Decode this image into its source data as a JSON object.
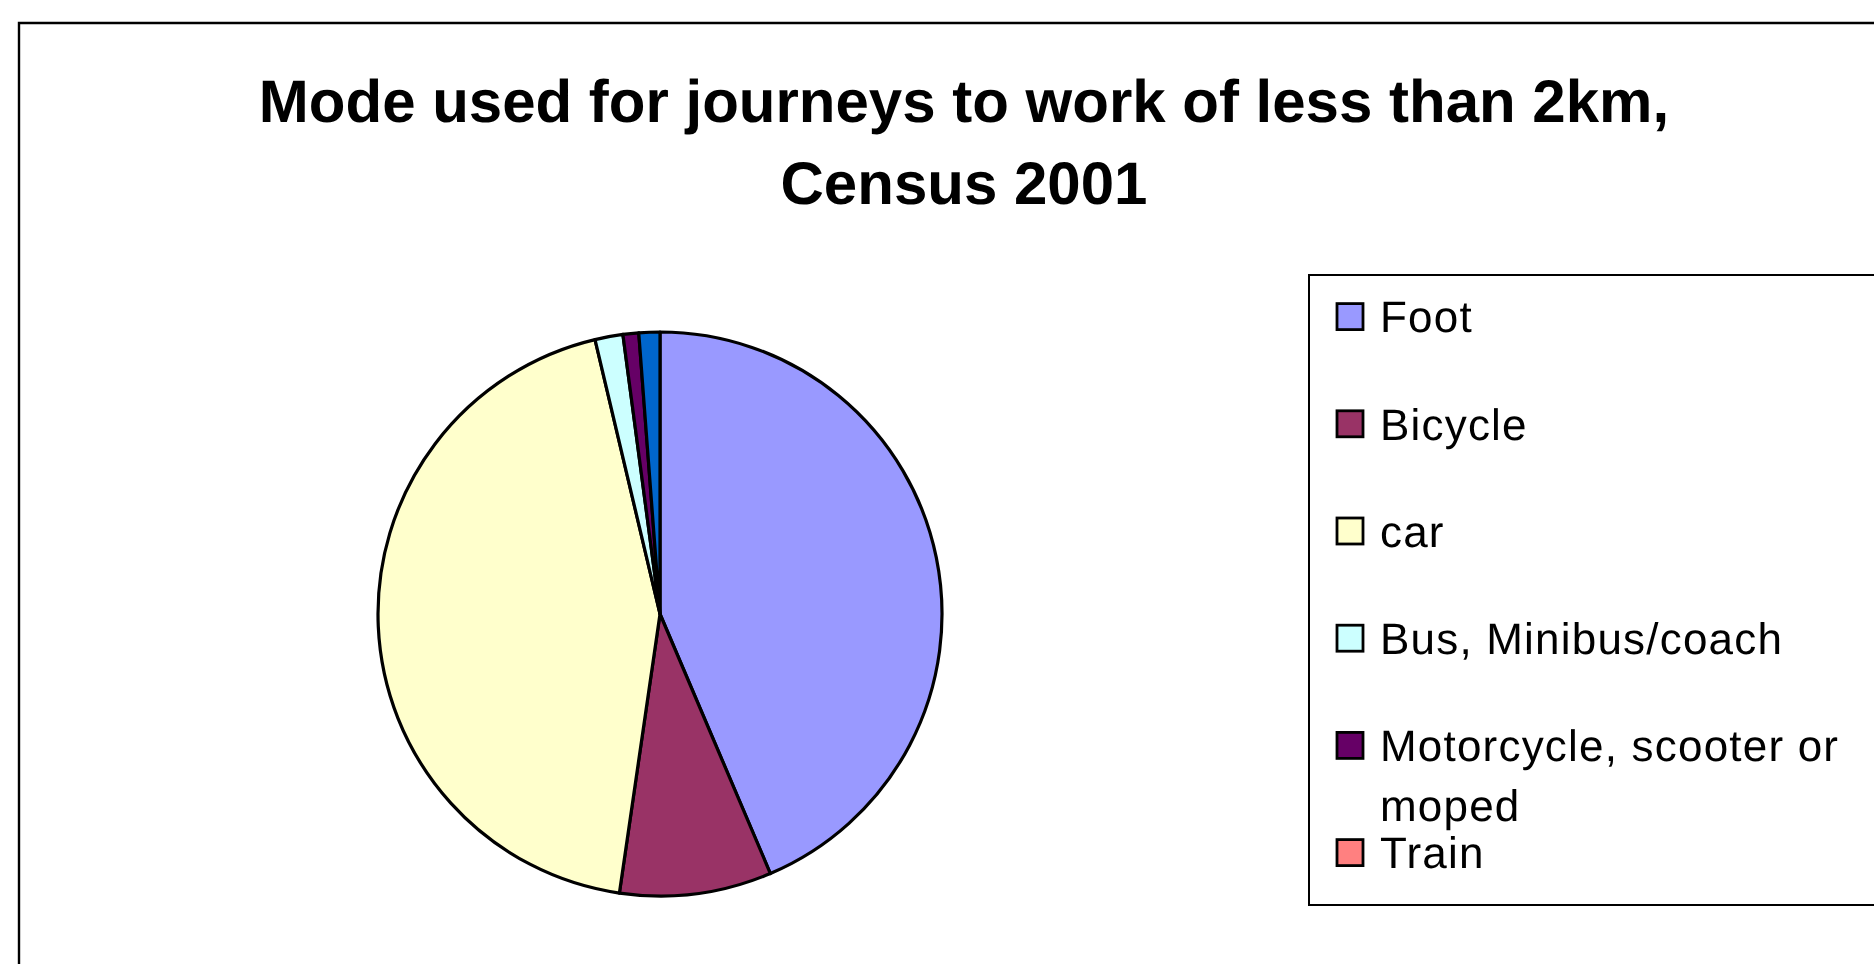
{
  "chart_data": {
    "type": "pie",
    "title": "Mode used for journeys to work of less than 2km, Census 2001",
    "categories": [
      "Foot",
      "Bicycle",
      "car",
      "Bus, Minibus/coach",
      "Motorcycle, scooter or moped",
      "Train",
      null
    ],
    "values": [
      43.6,
      8.7,
      44.0,
      1.6,
      0.9,
      0,
      1.2
    ],
    "colors": [
      "#9999ff",
      "#993366",
      "#ffffcc",
      "#ccffff",
      "#660066",
      "#ff8080",
      "#0066cc"
    ],
    "legend": "right"
  }
}
